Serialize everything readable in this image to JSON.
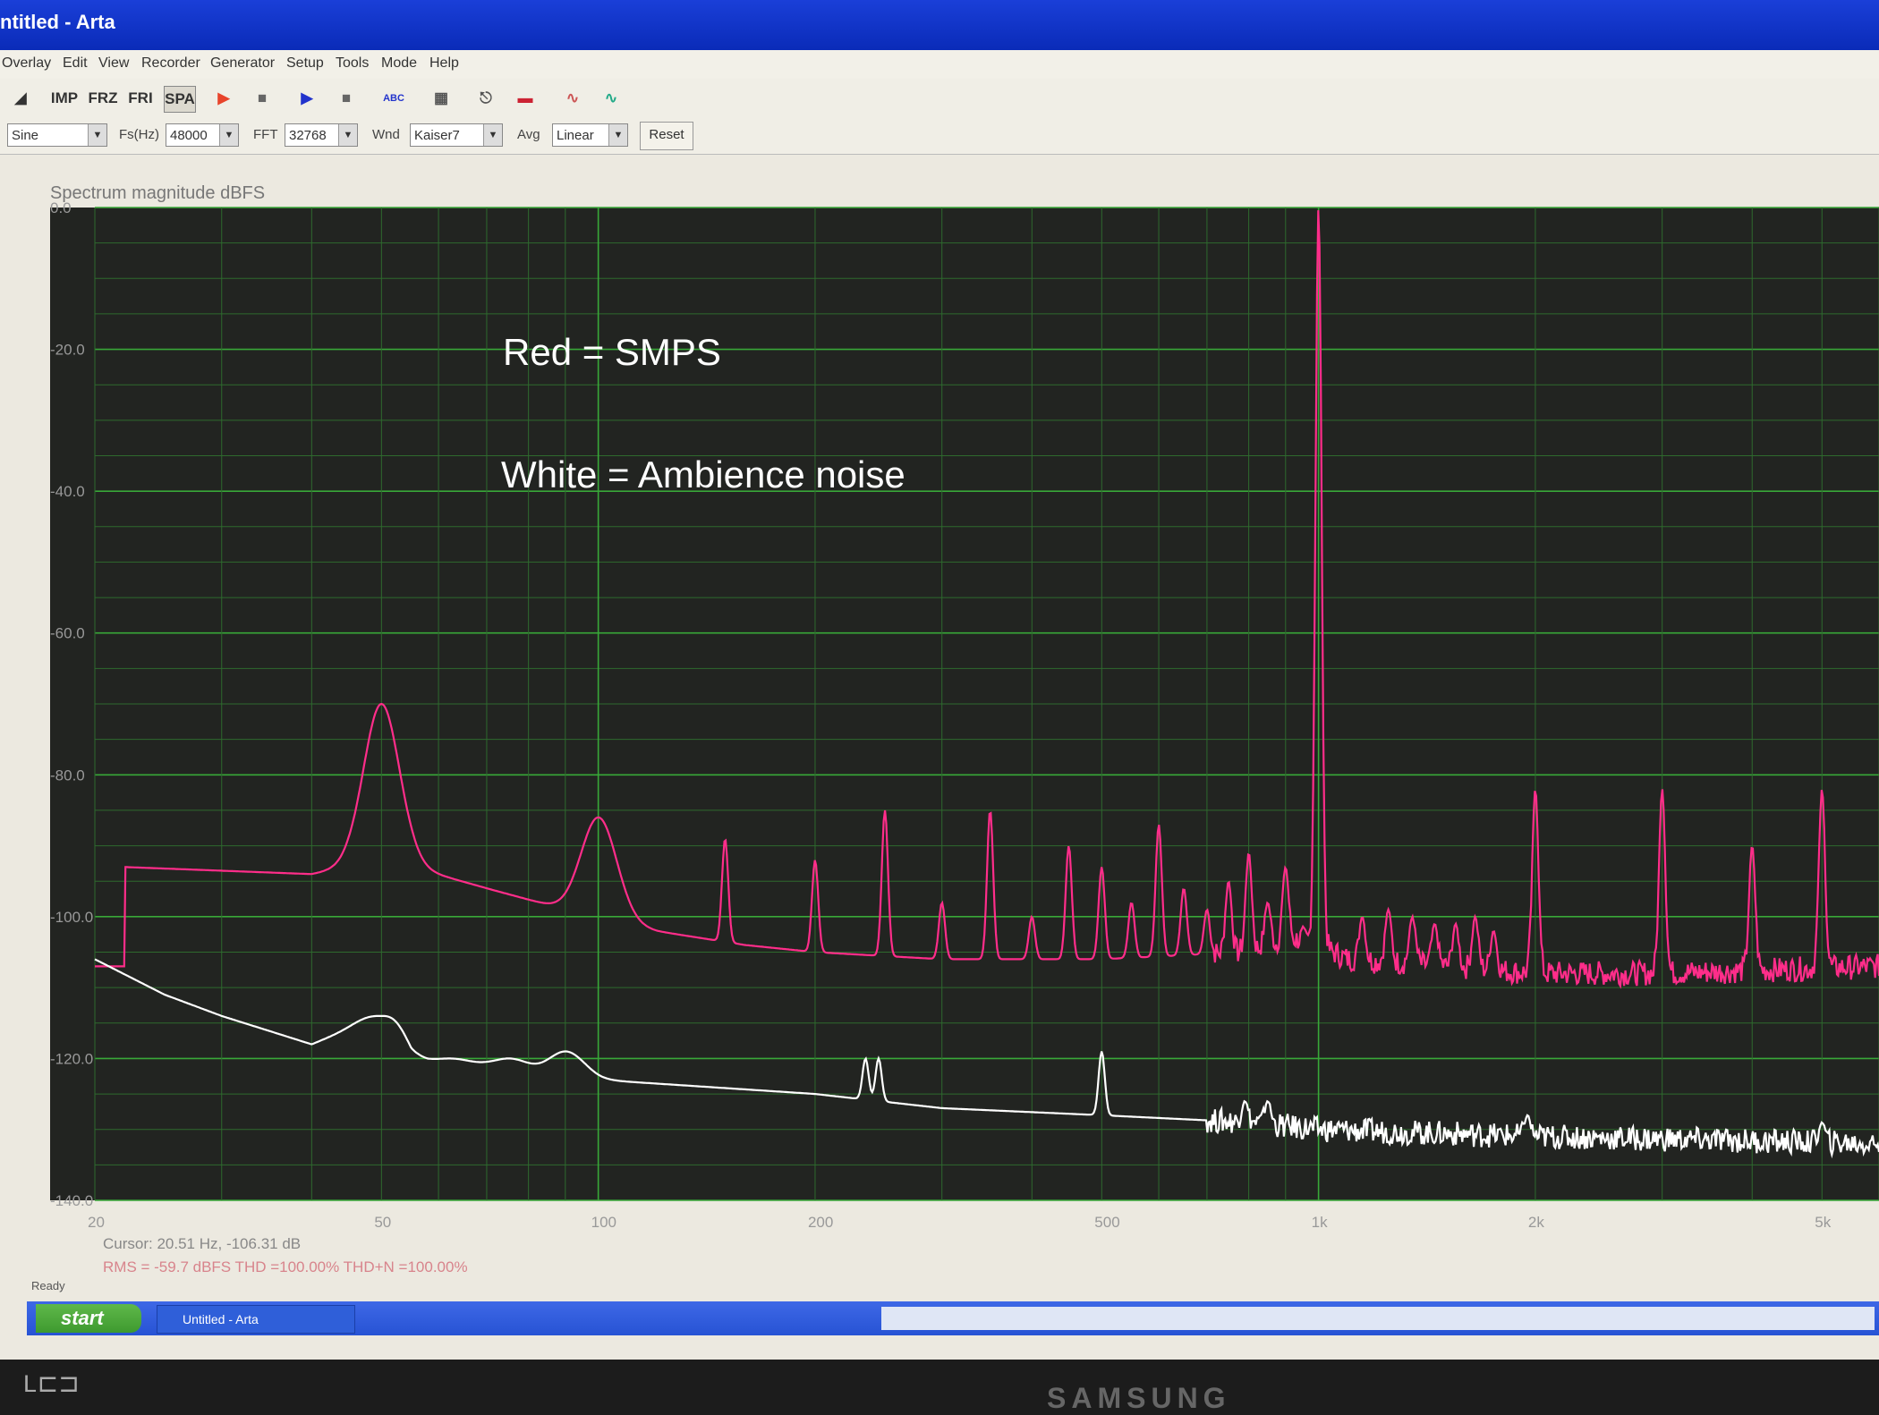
{
  "window": {
    "title": "ntitled - Arta"
  },
  "menu": [
    "Overlay",
    "Edit",
    "View",
    "Recorder",
    "Generator",
    "Setup",
    "Tools",
    "Mode",
    "Help"
  ],
  "toolbar": {
    "imp": "IMP",
    "frz": "FRZ",
    "fri": "FRI",
    "spa": "SPA"
  },
  "params": {
    "signal": "Sine",
    "fs_label": "Fs(Hz)",
    "fs": "48000",
    "fft_label": "FFT",
    "fft": "32768",
    "wnd_label": "Wnd",
    "wnd": "Kaiser7",
    "avg_label": "Avg",
    "avg": "Linear",
    "reset": "Reset"
  },
  "chart_data": {
    "type": "line",
    "title": "Spectrum magnitude dBFS",
    "xscale": "log",
    "xlim": [
      20,
      6000
    ],
    "ylim": [
      -140,
      0
    ],
    "y_ticks": [
      "0.0",
      "-20.0",
      "-40.0",
      "-60.0",
      "-80.0",
      "-100.0",
      "-120.0",
      "-140.0"
    ],
    "x_ticks": [
      {
        "v": 20,
        "label": "20"
      },
      {
        "v": 50,
        "label": "50"
      },
      {
        "v": 100,
        "label": "100"
      },
      {
        "v": 200,
        "label": "200"
      },
      {
        "v": 500,
        "label": "500"
      },
      {
        "v": 1000,
        "label": "1k"
      },
      {
        "v": 2000,
        "label": "2k"
      },
      {
        "v": 5000,
        "label": "5k"
      }
    ],
    "grid": true,
    "annotations": [
      "Red = SMPS",
      "White = Ambience noise"
    ],
    "series": [
      {
        "color": "#ff2d8a",
        "baseline": [
          [
            22,
            -93
          ],
          [
            40,
            -94
          ],
          [
            45,
            -93
          ],
          [
            55,
            -93
          ],
          [
            70,
            -96
          ],
          [
            90,
            -99
          ],
          [
            120,
            -102
          ],
          [
            160,
            -104
          ],
          [
            200,
            -105
          ],
          [
            300,
            -106
          ],
          [
            500,
            -106
          ],
          [
            800,
            -105
          ],
          [
            950,
            -103
          ],
          [
            1100,
            -106
          ],
          [
            1500,
            -107
          ],
          [
            2000,
            -108
          ],
          [
            3000,
            -108
          ],
          [
            6000,
            -107
          ]
        ],
        "peaks": [
          [
            50,
            -70
          ],
          [
            100,
            -86
          ],
          [
            150,
            -89
          ],
          [
            200,
            -92
          ],
          [
            250,
            -85
          ],
          [
            300,
            -98
          ],
          [
            350,
            -85
          ],
          [
            400,
            -100
          ],
          [
            450,
            -90
          ],
          [
            500,
            -93
          ],
          [
            550,
            -98
          ],
          [
            600,
            -87
          ],
          [
            650,
            -96
          ],
          [
            700,
            -99
          ],
          [
            750,
            -95
          ],
          [
            800,
            -91
          ],
          [
            850,
            -98
          ],
          [
            900,
            -93
          ],
          [
            1000,
            0
          ],
          [
            2000,
            -82
          ],
          [
            3000,
            -82
          ],
          [
            4000,
            -90
          ],
          [
            5000,
            -82
          ],
          [
            1150,
            -100
          ],
          [
            1250,
            -99
          ],
          [
            1350,
            -100
          ],
          [
            1450,
            -101
          ],
          [
            1550,
            -101
          ],
          [
            1650,
            -100
          ],
          [
            1750,
            -102
          ]
        ]
      },
      {
        "color": "#ffffff",
        "baseline": [
          [
            20,
            -106
          ],
          [
            25,
            -111
          ],
          [
            30,
            -114
          ],
          [
            40,
            -118
          ],
          [
            50,
            -114
          ],
          [
            55,
            -120
          ],
          [
            70,
            -121
          ],
          [
            100,
            -123
          ],
          [
            200,
            -125
          ],
          [
            300,
            -127
          ],
          [
            500,
            -128
          ],
          [
            800,
            -129
          ],
          [
            1000,
            -130
          ],
          [
            2000,
            -131
          ],
          [
            6000,
            -132
          ]
        ],
        "peaks": [
          [
            50,
            -114
          ],
          [
            62,
            -120
          ],
          [
            75,
            -120
          ],
          [
            90,
            -119
          ],
          [
            235,
            -120
          ],
          [
            245,
            -120
          ],
          [
            500,
            -119
          ],
          [
            790,
            -126
          ],
          [
            850,
            -126
          ],
          [
            1950,
            -128
          ],
          [
            5000,
            -129
          ]
        ]
      }
    ],
    "cursor_readout": "Cursor: 20.51 Hz, -106.31 dB",
    "rms_readout": "RMS = -59.7 dBFS    THD =100.00%    THD+N =100.00%"
  },
  "status": {
    "ready": "Ready"
  },
  "taskbar": {
    "start": "start",
    "task": "Untitled - Arta"
  },
  "monitor": {
    "brand": "SAMSUNG"
  }
}
